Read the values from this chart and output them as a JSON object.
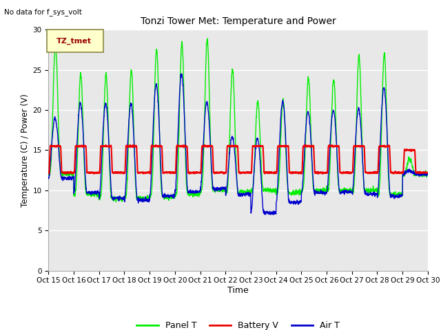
{
  "title": "Tonzi Tower Met: Temperature and Power",
  "xlabel": "Time",
  "ylabel": "Temperature (C) / Power (V)",
  "no_data_label": "No data for f_sys_volt",
  "legend_label": "TZ_tmet",
  "ylim": [
    0,
    30
  ],
  "yticks": [
    0,
    5,
    10,
    15,
    20,
    25,
    30
  ],
  "x_tick_labels": [
    "Oct 15",
    "Oct 16",
    "Oct 17",
    "Oct 18",
    "Oct 19",
    "Oct 20",
    "Oct 21",
    "Oct 22",
    "Oct 23",
    "Oct 24",
    "Oct 25",
    "Oct 26",
    "Oct 27",
    "Oct 28",
    "Oct 29",
    "Oct 30"
  ],
  "panel_color": "#00ee00",
  "battery_color": "#ee0000",
  "air_color": "#0000cc",
  "plot_bg_color": "#e8e8e8",
  "fig_bg_color": "#ffffff",
  "legend_items": [
    "Panel T",
    "Battery V",
    "Air T"
  ],
  "legend_colors": [
    "#00ee00",
    "#ee0000",
    "#0000cc"
  ],
  "panel_peaks": [
    28.2,
    24.5,
    24.5,
    25.0,
    27.5,
    28.3,
    28.8,
    25.2,
    21.1,
    21.2,
    24.0,
    23.8,
    26.8,
    27.1,
    14.0
  ],
  "air_peaks": [
    19.0,
    20.8,
    20.8,
    20.8,
    23.2,
    24.5,
    21.0,
    16.7,
    16.5,
    21.0,
    19.8,
    20.0,
    20.2,
    22.8,
    12.5
  ],
  "panel_troughs": [
    12.0,
    9.5,
    9.0,
    9.0,
    9.2,
    9.5,
    10.0,
    9.8,
    10.0,
    9.7,
    10.0,
    10.0,
    10.0,
    9.5,
    12.0
  ],
  "air_troughs": [
    11.5,
    9.7,
    9.0,
    8.8,
    9.3,
    9.8,
    10.2,
    9.5,
    7.2,
    8.5,
    9.7,
    9.8,
    9.5,
    9.3,
    12.0
  ],
  "batt_peaks": [
    15.5,
    15.5,
    15.5,
    15.5,
    15.5,
    15.5,
    15.5,
    15.5,
    15.5,
    15.5,
    15.5,
    15.5,
    15.5,
    15.5,
    15.0
  ],
  "batt_base": 12.2
}
